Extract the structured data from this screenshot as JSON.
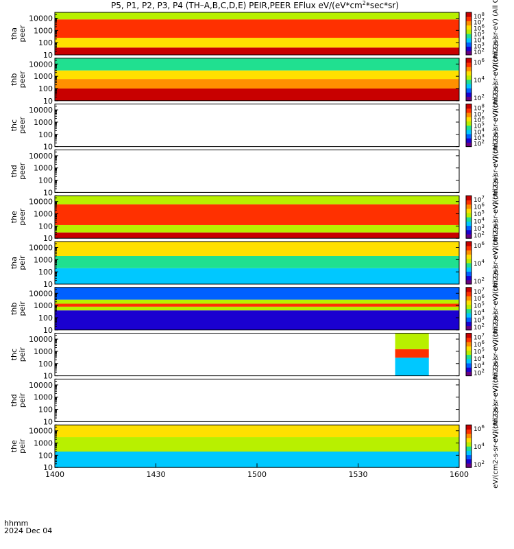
{
  "title_parts": [
    "P5, P1, P2, P3, P4 (TH–A,B,C,D,E) PEIR,PEER EFlux eV/(eV*cm",
    "2",
    "*sec*sr)"
  ],
  "time_axis": {
    "label_line1": "hhmm",
    "label_line2": "2024 Dec 04",
    "ticks": [
      "1400",
      "1430",
      "1500",
      "1530",
      "1600"
    ],
    "tick_values": [
      0,
      30,
      60,
      90,
      120
    ]
  },
  "colors": {
    "saturated_band_red": "#ee0000",
    "saturated_band_yellow": "#ffee00",
    "spectrogram_scale": [
      "#6a0080",
      "#1a00d0",
      "#0060ff",
      "#00c8ff",
      "#20e090",
      "#b8f000",
      "#ffe000",
      "#ff9000",
      "#ff3000",
      "#c80000"
    ]
  },
  "chart_data": {
    "type": "heatmap",
    "x_units": "minutes after 14:00 UT",
    "xlim": [
      0,
      120
    ],
    "panels": [
      {
        "id": "tha-peer",
        "y_label": [
          "tha",
          "peer"
        ],
        "y_ticks": [
          "10",
          "100",
          "1000",
          "10000"
        ],
        "ylim": [
          10,
          30000
        ],
        "log": true,
        "colorbar": {
          "labels": [
            "10",
            "10",
            "10",
            "10",
            "10",
            "10",
            "10"
          ],
          "exponents": [
            "8",
            "7",
            "6",
            "5",
            "4",
            "3",
            "2"
          ],
          "title": "eV/(cm2-s-sr-eV) (All Qs)"
        },
        "bands": [
          {
            "y_lo": 10,
            "y_hi": 40,
            "level": 0.95
          },
          {
            "y_lo": 40,
            "y_hi": 250,
            "level": 0.62
          },
          {
            "y_lo": 250,
            "y_hi": 8000,
            "level": 0.85
          },
          {
            "y_lo": 8000,
            "y_hi": 30000,
            "level": 0.5
          }
        ]
      },
      {
        "id": "thb-peer",
        "y_label": [
          "thb",
          "peer"
        ],
        "y_ticks": [
          "10",
          "100",
          "1000",
          "10000"
        ],
        "ylim": [
          10,
          30000
        ],
        "log": true,
        "colorbar": {
          "labels": [
            "10",
            "10",
            "10"
          ],
          "exponents": [
            "6",
            "4",
            "2"
          ],
          "title": "eV/(cm2-s-sr-eV) (All Qs)"
        },
        "bands": [
          {
            "y_lo": 10,
            "y_hi": 100,
            "level": 0.97
          },
          {
            "y_lo": 100,
            "y_hi": 600,
            "level": 0.8
          },
          {
            "y_lo": 600,
            "y_hi": 3000,
            "level": 0.65
          },
          {
            "y_lo": 3000,
            "y_hi": 30000,
            "level": 0.45
          }
        ]
      },
      {
        "id": "thc-peer",
        "y_label": [
          "thc",
          "peer"
        ],
        "y_ticks": [
          "10",
          "100",
          "1000",
          "10000"
        ],
        "ylim": [
          10,
          30000
        ],
        "log": true,
        "colorbar": {
          "labels": [
            "10",
            "10",
            "10",
            "10",
            "10",
            "10",
            "10"
          ],
          "exponents": [
            "8",
            "7",
            "6",
            "5",
            "4",
            "3",
            "2"
          ],
          "title": "eV/(cm2-s-sr-eV) (All Qs)"
        },
        "bands": []
      },
      {
        "id": "thd-peer",
        "y_label": [
          "thd",
          "peer"
        ],
        "y_ticks": [
          "10",
          "100",
          "1000",
          "10000"
        ],
        "ylim": [
          10,
          30000
        ],
        "log": true,
        "colorbar": {
          "labels": [],
          "exponents": [],
          "title": "eV/(cm2-s-sr-eV) (All Qs)"
        },
        "bands": []
      },
      {
        "id": "the-peer",
        "y_label": [
          "the",
          "peer"
        ],
        "y_ticks": [
          "10",
          "100",
          "1000",
          "10000"
        ],
        "ylim": [
          10,
          30000
        ],
        "log": true,
        "colorbar": {
          "labels": [
            "10",
            "10",
            "10",
            "10",
            "10",
            "10"
          ],
          "exponents": [
            "7",
            "6",
            "5",
            "4",
            "3",
            "2"
          ],
          "title": "eV/(cm2-s-sr-eV) (All Qs)"
        },
        "bands": [
          {
            "y_lo": 10,
            "y_hi": 30,
            "level": 0.95
          },
          {
            "y_lo": 30,
            "y_hi": 120,
            "level": 0.6
          },
          {
            "y_lo": 120,
            "y_hi": 6000,
            "level": 0.86
          },
          {
            "y_lo": 6000,
            "y_hi": 30000,
            "level": 0.52
          }
        ]
      },
      {
        "id": "tha-peir",
        "y_label": [
          "tha",
          "peir"
        ],
        "y_ticks": [
          "10",
          "100",
          "1000",
          "10000"
        ],
        "ylim": [
          10,
          30000
        ],
        "log": true,
        "colorbar": {
          "labels": [
            "10",
            "10",
            "10"
          ],
          "exponents": [
            "6",
            "4",
            "2"
          ],
          "title": "eV/(cm2-s-sr-eV) (All Qs)"
        },
        "bands": [
          {
            "y_lo": 10,
            "y_hi": 200,
            "level": 0.3
          },
          {
            "y_lo": 200,
            "y_hi": 2000,
            "level": 0.48
          },
          {
            "y_lo": 2000,
            "y_hi": 30000,
            "level": 0.62
          }
        ]
      },
      {
        "id": "thb-peir",
        "y_label": [
          "thb",
          "peir"
        ],
        "y_ticks": [
          "10",
          "100",
          "1000",
          "10000"
        ],
        "ylim": [
          10,
          30000
        ],
        "log": true,
        "colorbar": {
          "labels": [
            "10",
            "10",
            "10",
            "10",
            "10",
            "10"
          ],
          "exponents": [
            "7",
            "6",
            "5",
            "4",
            "3",
            "2"
          ],
          "title": "eV/(cm2-s-sr-eV) (All Qs)"
        },
        "bands": [
          {
            "y_lo": 10,
            "y_hi": 400,
            "level": 0.15
          },
          {
            "y_lo": 400,
            "y_hi": 800,
            "level": 0.55
          },
          {
            "y_lo": 800,
            "y_hi": 1400,
            "level": 0.92
          },
          {
            "y_lo": 1400,
            "y_hi": 3000,
            "level": 0.5
          },
          {
            "y_lo": 3000,
            "y_hi": 30000,
            "level": 0.25
          }
        ]
      },
      {
        "id": "thc-peir",
        "y_label": [
          "thc",
          "peir"
        ],
        "y_ticks": [
          "10",
          "100",
          "1000",
          "10000"
        ],
        "ylim": [
          10,
          30000
        ],
        "log": true,
        "colorbar": {
          "labels": [
            "10",
            "10",
            "10",
            "10",
            "10",
            "10"
          ],
          "exponents": [
            "7",
            "6",
            "5",
            "4",
            "3",
            "2"
          ],
          "title": "eV/(cm2-s-sr-eV) (All Qs)"
        },
        "bands": [
          {
            "x_lo": 101,
            "x_hi": 111,
            "y_lo": 10,
            "y_hi": 300,
            "level": 0.32
          },
          {
            "x_lo": 101,
            "x_hi": 111,
            "y_lo": 300,
            "y_hi": 1500,
            "level": 0.9
          },
          {
            "x_lo": 101,
            "x_hi": 111,
            "y_lo": 1500,
            "y_hi": 30000,
            "level": 0.55
          }
        ]
      },
      {
        "id": "thd-peir",
        "y_label": [
          "thd",
          "peir"
        ],
        "y_ticks": [
          "10",
          "100",
          "1000",
          "10000"
        ],
        "ylim": [
          10,
          30000
        ],
        "log": true,
        "colorbar": {
          "labels": [],
          "exponents": [],
          "title": "eV/(cm2-s-sr-eV) (All Qs)"
        },
        "bands": []
      },
      {
        "id": "the-peir",
        "y_label": [
          "the",
          "peir"
        ],
        "y_ticks": [
          "10",
          "100",
          "1000",
          "10000"
        ],
        "ylim": [
          10,
          30000
        ],
        "log": true,
        "colorbar": {
          "labels": [
            "10",
            "10",
            "10"
          ],
          "exponents": [
            "6",
            "4",
            "2"
          ],
          "title": "eV/(cm2-s-sr-eV) (All Qs)"
        },
        "bands": [
          {
            "y_lo": 10,
            "y_hi": 200,
            "level": 0.3
          },
          {
            "y_lo": 200,
            "y_hi": 3000,
            "level": 0.5
          },
          {
            "y_lo": 3000,
            "y_hi": 30000,
            "level": 0.62
          }
        ]
      }
    ]
  }
}
